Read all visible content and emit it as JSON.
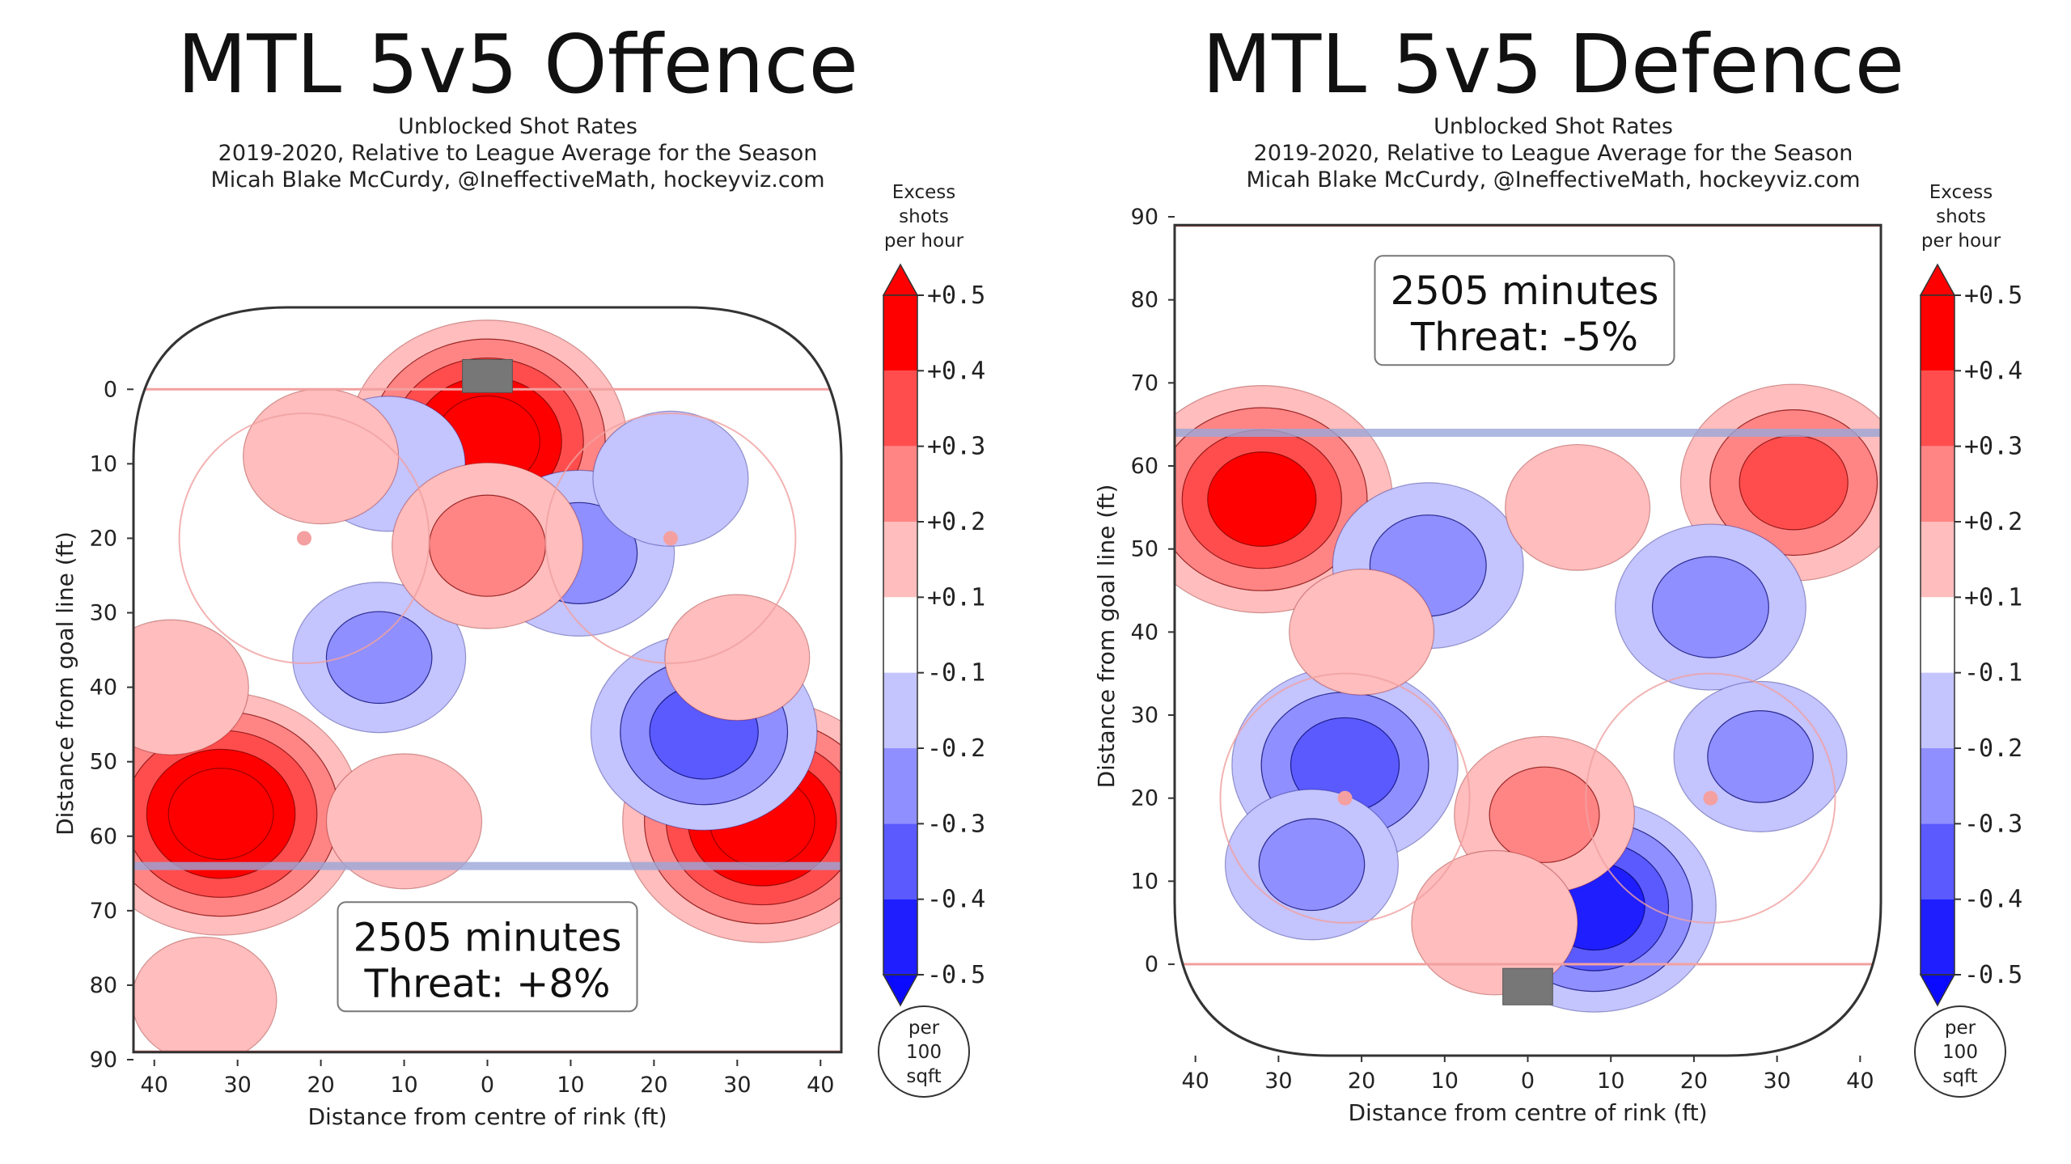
{
  "chart_data": [
    {
      "type": "heatmap",
      "title": "MTL 5v5 Offence",
      "subtitle_lines": [
        "Unblocked Shot Rates",
        "2019-2020, Relative to League Average for the Season",
        "Micah Blake McCurdy, @IneffectiveMath, hockeyviz.com"
      ],
      "xlabel": "Distance from centre of rink (ft)",
      "ylabel": "Distance from goal line (ft)",
      "xlim": [
        42.5,
        -42.5
      ],
      "ylim": [
        90,
        -11
      ],
      "x_ticks": [
        "40",
        "30",
        "20",
        "10",
        "0",
        "10",
        "20",
        "30",
        "40"
      ],
      "y_ticks": [
        "0",
        "10",
        "20",
        "30",
        "40",
        "50",
        "60",
        "70",
        "80",
        "90"
      ],
      "net_at_top": true,
      "annotation": {
        "minutes": "2505 minutes",
        "threat": "Threat: +8%"
      },
      "hotspots": [
        {
          "x": 0,
          "y": 7,
          "value": 0.5
        },
        {
          "x": 32,
          "y": 57,
          "value": 0.5
        },
        {
          "x": -33,
          "y": 58,
          "value": 0.5
        },
        {
          "x": -26,
          "y": 46,
          "value": -0.35
        },
        {
          "x": -11,
          "y": 22,
          "value": -0.25
        },
        {
          "x": 13,
          "y": 36,
          "value": -0.2
        },
        {
          "x": 12,
          "y": 10,
          "value": -0.15
        },
        {
          "x": -22,
          "y": 12,
          "value": -0.15
        },
        {
          "x": 0,
          "y": 21,
          "value": 0.25
        },
        {
          "x": 20,
          "y": 9,
          "value": 0.15
        },
        {
          "x": 38,
          "y": 40,
          "value": 0.15
        },
        {
          "x": 10,
          "y": 58,
          "value": 0.15
        },
        {
          "x": -30,
          "y": 36,
          "value": 0.12
        },
        {
          "x": 34,
          "y": 82,
          "value": 0.12
        }
      ]
    },
    {
      "type": "heatmap",
      "title": "MTL 5v5 Defence",
      "subtitle_lines": [
        "Unblocked Shot Rates",
        "2019-2020, Relative to League Average for the Season",
        "Micah Blake McCurdy, @IneffectiveMath, hockeyviz.com"
      ],
      "xlabel": "Distance from centre of rink (ft)",
      "ylabel": "Distance from goal line (ft)",
      "xlim": [
        42.5,
        -42.5
      ],
      "ylim": [
        -11,
        90
      ],
      "x_ticks": [
        "40",
        "30",
        "20",
        "10",
        "0",
        "10",
        "20",
        "30",
        "40"
      ],
      "y_ticks": [
        "0",
        "10",
        "20",
        "30",
        "40",
        "50",
        "60",
        "70",
        "80",
        "90"
      ],
      "net_at_top": false,
      "annotation": {
        "minutes": "2505 minutes",
        "threat": "Threat: -5%"
      },
      "hotspots": [
        {
          "x": 32,
          "y": 56,
          "value": 0.45
        },
        {
          "x": -32,
          "y": 58,
          "value": 0.35
        },
        {
          "x": -8,
          "y": 7,
          "value": -0.4
        },
        {
          "x": 22,
          "y": 24,
          "value": -0.35
        },
        {
          "x": 12,
          "y": 48,
          "value": -0.25
        },
        {
          "x": -22,
          "y": 43,
          "value": -0.25
        },
        {
          "x": -28,
          "y": 25,
          "value": -0.2
        },
        {
          "x": 26,
          "y": 12,
          "value": -0.2
        },
        {
          "x": -2,
          "y": 18,
          "value": 0.22
        },
        {
          "x": 4,
          "y": 5,
          "value": 0.18
        },
        {
          "x": 20,
          "y": 40,
          "value": 0.12
        },
        {
          "x": -6,
          "y": 55,
          "value": 0.12
        }
      ]
    }
  ],
  "colorbar": {
    "title_lines": [
      "Excess",
      "shots",
      "per hour"
    ],
    "levels": [
      "+0.5",
      "+0.4",
      "+0.3",
      "+0.2",
      "+0.1",
      "-0.1",
      "-0.2",
      "-0.3",
      "-0.4",
      "-0.5"
    ],
    "band_colors": [
      "#ff0000",
      "#ff4d4d",
      "#ff8585",
      "#ffbdbd",
      "#ffffff",
      "#c4c4ff",
      "#8f8fff",
      "#5a5aff",
      "#1e1eff"
    ],
    "unit_lines": [
      "per",
      "100",
      "sqft"
    ]
  }
}
